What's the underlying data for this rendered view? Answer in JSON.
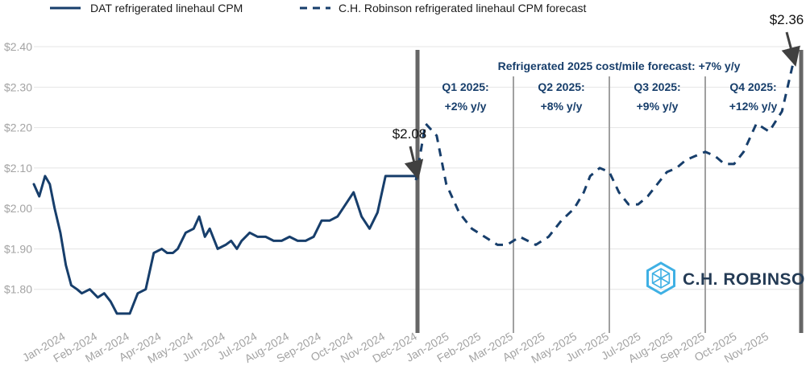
{
  "chart_data": {
    "type": "line",
    "title": "",
    "xlabel": "",
    "ylabel": "",
    "ylim": [
      1.7,
      2.42
    ],
    "y_ticks": [
      1.8,
      1.9,
      2.0,
      2.1,
      2.2,
      2.3,
      2.4
    ],
    "y_tick_labels": [
      "$1.80",
      "$1.90",
      "$2.00",
      "$2.10",
      "$2.20",
      "$2.30",
      "$2.40"
    ],
    "x_range": [
      0,
      24
    ],
    "x_ticks": [
      0,
      1,
      2,
      3,
      4,
      5,
      6,
      7,
      8,
      9,
      10,
      11,
      12,
      13,
      14,
      15,
      16,
      17,
      18,
      19,
      20,
      21,
      22
    ],
    "x_tick_labels": [
      "Jan-2024",
      "Feb-2024",
      "Mar-2024",
      "Apr-2024",
      "May-2024",
      "Jun-2024",
      "Jul-2024",
      "Aug-2024",
      "Sep-2024",
      "Oct-2024",
      "Nov-2024",
      "Dec-2024",
      "Jan-2025",
      "Feb-2025",
      "Mar-2025",
      "Apr-2025",
      "May-2025",
      "Jun-2025",
      "Jul-2025",
      "Aug-2025",
      "Sep-2025",
      "Oct-2025",
      "Nov-2025"
    ],
    "grid": true,
    "legend_position": "top-left",
    "series": [
      {
        "name": "DAT refrigerated linehaul CPM",
        "style": "solid",
        "color": "#173e6b",
        "x": [
          0,
          0.17,
          0.35,
          0.5,
          0.65,
          0.83,
          1.0,
          1.17,
          1.35,
          1.5,
          1.75,
          2.0,
          2.2,
          2.4,
          2.6,
          2.8,
          3.0,
          3.25,
          3.5,
          3.75,
          4.0,
          4.17,
          4.35,
          4.5,
          4.75,
          5.0,
          5.17,
          5.35,
          5.5,
          5.75,
          6.0,
          6.17,
          6.35,
          6.5,
          6.75,
          7.0,
          7.25,
          7.5,
          7.75,
          8.0,
          8.25,
          8.5,
          8.75,
          9.0,
          9.25,
          9.5,
          9.75,
          10.0,
          10.25,
          10.5,
          10.75,
          11.0,
          11.25,
          11.5,
          11.75,
          12.0
        ],
        "y": [
          2.06,
          2.03,
          2.08,
          2.06,
          2.0,
          1.94,
          1.86,
          1.81,
          1.8,
          1.79,
          1.8,
          1.78,
          1.79,
          1.77,
          1.74,
          1.74,
          1.74,
          1.79,
          1.8,
          1.89,
          1.9,
          1.89,
          1.89,
          1.9,
          1.94,
          1.95,
          1.98,
          1.93,
          1.95,
          1.9,
          1.91,
          1.92,
          1.9,
          1.92,
          1.94,
          1.93,
          1.93,
          1.92,
          1.92,
          1.93,
          1.92,
          1.92,
          1.93,
          1.97,
          1.97,
          1.98,
          2.01,
          2.04,
          1.98,
          1.95,
          1.99,
          2.08,
          2.08,
          2.08,
          2.08,
          2.08
        ]
      },
      {
        "name": "C.H. Robinson refrigerated linehaul CPM forecast",
        "style": "dashed",
        "color": "#173e6b",
        "x": [
          11.95,
          12.25,
          12.6,
          12.9,
          13.3,
          13.7,
          14.1,
          14.5,
          14.8,
          15.2,
          15.7,
          16.1,
          16.5,
          16.9,
          17.2,
          17.4,
          17.7,
          18.0,
          18.3,
          18.6,
          18.9,
          19.2,
          19.5,
          19.8,
          20.1,
          20.4,
          20.7,
          21.0,
          21.3,
          21.6,
          21.9,
          22.2,
          22.6,
          23.0,
          23.4,
          23.75
        ],
        "y": [
          2.07,
          2.21,
          2.18,
          2.06,
          1.99,
          1.95,
          1.93,
          1.91,
          1.91,
          1.93,
          1.91,
          1.93,
          1.97,
          2.0,
          2.04,
          2.08,
          2.1,
          2.09,
          2.04,
          2.01,
          2.01,
          2.03,
          2.06,
          2.09,
          2.1,
          2.12,
          2.13,
          2.14,
          2.13,
          2.11,
          2.11,
          2.14,
          2.21,
          2.19,
          2.24,
          2.36
        ]
      }
    ],
    "vertical_lines": [
      {
        "x": 12.0,
        "emphasis": "bold"
      },
      {
        "x": 15.0,
        "emphasis": "thin"
      },
      {
        "x": 18.0,
        "emphasis": "thin"
      },
      {
        "x": 21.0,
        "emphasis": "thin"
      },
      {
        "x": 24.0,
        "emphasis": "bold"
      }
    ],
    "annotations": {
      "headline": "Refrigerated 2025 cost/mile forecast: +7% y/y",
      "quarters": [
        {
          "x": 13.5,
          "line1": "Q1 2025:",
          "line2": "+2% y/y"
        },
        {
          "x": 16.5,
          "line1": "Q2 2025:",
          "line2": "+8% y/y"
        },
        {
          "x": 19.5,
          "line1": "Q3 2025:",
          "line2": "+9% y/y"
        },
        {
          "x": 22.5,
          "line1": "Q4 2025:",
          "line2": "+12% y/y"
        }
      ],
      "callouts": [
        {
          "text": "$2.08",
          "x": 12.0,
          "y": 2.08
        },
        {
          "text": "$2.36",
          "x": 23.75,
          "y": 2.36
        }
      ]
    }
  },
  "brand": {
    "name": "C.H. ROBINSON",
    "icon": "cube-logo-icon",
    "color": "#3fb0e4"
  },
  "colors": {
    "grid": "#e4e4e4",
    "divider_bold": "#666666",
    "divider_thin": "#a0a0a0",
    "tick": "#a3a3a3",
    "annotation": "#173e6b"
  }
}
